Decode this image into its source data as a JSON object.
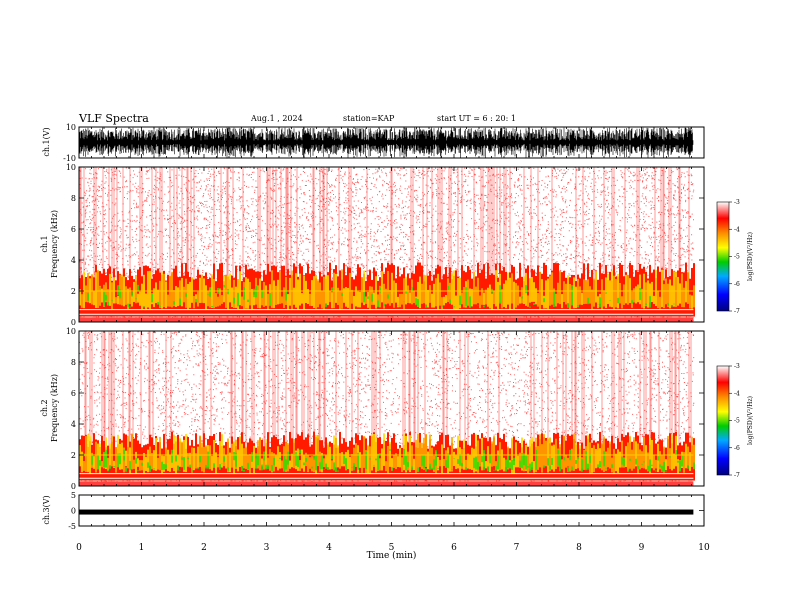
{
  "header": {
    "title": "VLF Spectra",
    "date": "Aug.1 , 2024",
    "station": "station=KAP",
    "start_ut": "start UT = 6 : 20: 1"
  },
  "colors": {
    "low": "#000080",
    "mid_low": "#0000ff",
    "green": "#00cc00",
    "yellow": "#ffff00",
    "red": "#ff0000",
    "high": "#ffffff"
  },
  "chart_data": [
    {
      "type": "line",
      "panel": "ch1 waveform",
      "ylabel": "ch.1(V)",
      "ylim": [
        -10,
        10
      ],
      "yticks": [
        "10",
        "-10"
      ],
      "x_range_min": [
        0,
        9.83
      ],
      "description_values": "dense waveform oscillating between about -9 and +9 V"
    },
    {
      "type": "heatmap",
      "panel": "ch1 spectrogram",
      "ylabel": "ch.1 Frequency (kHz)",
      "ylim": [
        0,
        10
      ],
      "yticks": [
        "0",
        "2",
        "4",
        "6",
        "8",
        "10"
      ],
      "x_range_min": [
        0,
        9.83
      ],
      "band_strong_khz": [
        0.8,
        3.5
      ],
      "colorbar": {
        "label": "log(PSD)(V²/Hz)",
        "ticks": [
          "-3",
          "-4",
          "-5",
          "-6",
          "-7"
        ],
        "range": [
          -7,
          -3
        ]
      }
    },
    {
      "type": "heatmap",
      "panel": "ch2 spectrogram",
      "ylabel": "ch.2 Frequency (kHz)",
      "ylim": [
        0,
        10
      ],
      "yticks": [
        "0",
        "2",
        "4",
        "6",
        "8",
        "10"
      ],
      "x_range_min": [
        0,
        9.83
      ],
      "band_strong_khz": [
        0.7,
        3.2
      ],
      "colorbar": {
        "label": "log(PSD)(V²/Hz)",
        "ticks": [
          "-3",
          "-4",
          "-5",
          "-6",
          "-7"
        ],
        "range": [
          -7,
          -3
        ]
      }
    },
    {
      "type": "line",
      "panel": "ch3 waveform",
      "ylabel": "ch.3(V)",
      "ylim": [
        -5,
        5
      ],
      "yticks": [
        "5",
        "0",
        "-5"
      ],
      "x_range_min": [
        0,
        9.83
      ],
      "level_v": -0.5
    }
  ],
  "xaxis": {
    "label": "Time (min)",
    "ticks": [
      "0",
      "1",
      "2",
      "3",
      "4",
      "5",
      "6",
      "7",
      "8",
      "9",
      "10"
    ],
    "range": [
      0,
      10
    ]
  }
}
